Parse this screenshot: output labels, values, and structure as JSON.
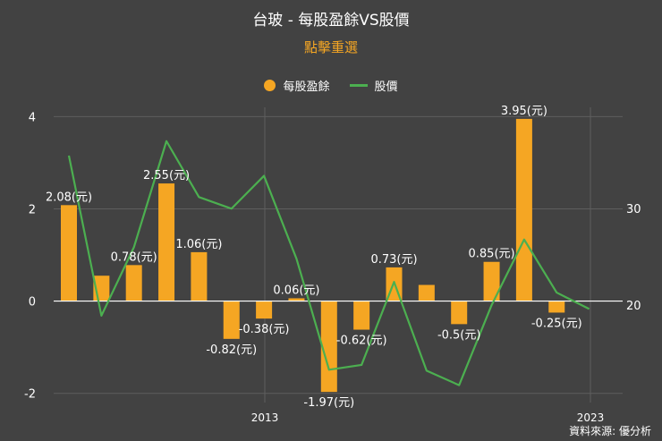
{
  "header": {
    "title": "台玻 - 每股盈餘VS股價",
    "subtitle": "點擊重選"
  },
  "legend": {
    "eps_label": "每股盈餘",
    "price_label": "股價"
  },
  "colors": {
    "background": "#424242",
    "eps_bar": "#f5a623",
    "price_line": "#4caf50",
    "subtitle": "#f5a623",
    "text": "#ffffff"
  },
  "source": "資料來源: 優分析",
  "chart_data": {
    "type": "bar",
    "title": "台玻 - 每股盈餘VS股價",
    "x_tick_labels": [
      "2013",
      "2023"
    ],
    "grid": true,
    "legend_position": "top-center",
    "series": [
      {
        "name": "每股盈餘",
        "type": "bar",
        "axis": "left",
        "values": [
          2.08,
          0.55,
          0.78,
          2.55,
          1.06,
          -0.82,
          -0.38,
          0.06,
          -1.97,
          -0.62,
          0.73,
          0.35,
          -0.5,
          0.85,
          3.95,
          -0.25
        ],
        "labels": [
          "2.08(元)",
          "",
          "0.78(元)",
          "2.55(元)",
          "1.06(元)",
          "-0.82(元)",
          "-0.38(元)",
          "0.06(元)",
          "-1.97(元)",
          "-0.62(元)",
          "0.73(元)",
          "",
          "-0.5(元)",
          "0.85(元)",
          "3.95(元)",
          "-0.25(元)"
        ]
      },
      {
        "name": "股價",
        "type": "line",
        "axis": "right",
        "values": [
          35.5,
          18.9,
          26.0,
          37.0,
          31.2,
          30.0,
          33.4,
          24.8,
          13.3,
          13.8,
          22.4,
          13.2,
          11.7,
          20.0,
          26.8,
          21.3,
          19.6
        ]
      }
    ],
    "y_left": {
      "min": -2.2,
      "max": 4.2,
      "ticks": [
        -2,
        0,
        2,
        4
      ]
    },
    "y_right": {
      "min": 9.9,
      "max": 40.5,
      "ticks": [
        20,
        30
      ]
    }
  }
}
